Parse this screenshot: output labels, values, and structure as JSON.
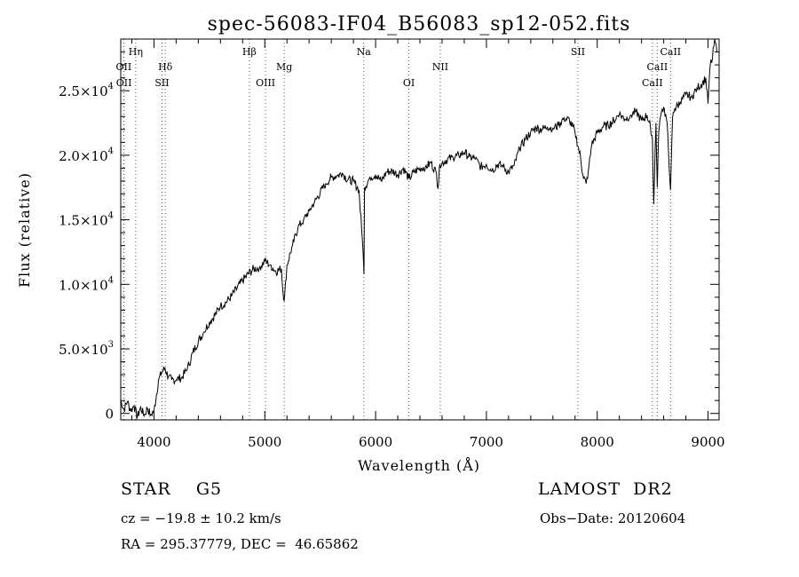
{
  "title": "spec-56083-IF04_B56083_sp12-052.fits",
  "footer": {
    "object_class": "STAR",
    "subclass": "G5",
    "survey": "LAMOST  DR2",
    "cz": "cz = −19.8 ± 10.2 km/s",
    "obs_date": "Obs−Date: 20120604",
    "radec": "RA = 295.37779, DEC =  46.65862"
  },
  "chart_data": {
    "type": "line",
    "title": "spec-56083-IF04_B56083_sp12-052.fits",
    "xlabel": "Wavelength (Å)",
    "ylabel": "Flux (relative)",
    "xlim": [
      3700,
      9100
    ],
    "ylim": [
      -500,
      29000
    ],
    "x_ticks": [
      4000,
      5000,
      6000,
      7000,
      8000,
      9000
    ],
    "y_ticks": [
      {
        "value": 0,
        "mantissa": "0",
        "exp": ""
      },
      {
        "value": 5000,
        "mantissa": "5.0×10",
        "exp": "3"
      },
      {
        "value": 10000,
        "mantissa": "1.0×10",
        "exp": "4"
      },
      {
        "value": 15000,
        "mantissa": "1.5×10",
        "exp": "4"
      },
      {
        "value": 20000,
        "mantissa": "2.0×10",
        "exp": "4"
      },
      {
        "value": 25000,
        "mantissa": "2.5×10",
        "exp": "4"
      }
    ],
    "grid": false,
    "series": [
      {
        "x": [
          3700,
          3730,
          3760,
          3790,
          3820,
          3850,
          3880,
          3910,
          3940,
          3970,
          4000,
          4040,
          4070,
          4100,
          4130,
          4160,
          4200,
          4250,
          4300,
          4350,
          4400,
          4450,
          4500,
          4550,
          4600,
          4650,
          4700,
          4750,
          4800,
          4850,
          4900,
          4950,
          5000,
          5050,
          5100,
          5150,
          5170,
          5180,
          5200,
          5250,
          5300,
          5350,
          5400,
          5450,
          5500,
          5550,
          5600,
          5650,
          5700,
          5750,
          5800,
          5850,
          5880,
          5890,
          5895,
          5900,
          5950,
          6000,
          6050,
          6100,
          6150,
          6200,
          6250,
          6300,
          6350,
          6400,
          6450,
          6500,
          6550,
          6563,
          6580,
          6600,
          6650,
          6700,
          6750,
          6800,
          6850,
          6900,
          6950,
          7000,
          7050,
          7100,
          7150,
          7200,
          7250,
          7300,
          7350,
          7400,
          7450,
          7500,
          7550,
          7600,
          7650,
          7700,
          7750,
          7800,
          7850,
          7870,
          7900,
          7920,
          7950,
          8000,
          8050,
          8100,
          8150,
          8200,
          8250,
          8300,
          8350,
          8400,
          8450,
          8480,
          8498,
          8510,
          8530,
          8542,
          8555,
          8580,
          8600,
          8630,
          8662,
          8680,
          8700,
          8750,
          8800,
          8850,
          8900,
          8950,
          8980,
          9000,
          9020,
          9040,
          9060,
          9080
        ],
        "y": [
          1000,
          300,
          900,
          200,
          600,
          -300,
          500,
          -200,
          400,
          -100,
          200,
          2500,
          3200,
          3500,
          2800,
          2600,
          2600,
          2800,
          3400,
          4700,
          5600,
          6300,
          7100,
          7600,
          8300,
          8600,
          9100,
          9700,
          10300,
          10800,
          11200,
          11300,
          11800,
          11500,
          11000,
          11200,
          8800,
          9200,
          11500,
          13000,
          14400,
          15000,
          15700,
          16400,
          17100,
          17800,
          18300,
          18400,
          18600,
          18100,
          18000,
          17300,
          13500,
          12000,
          10800,
          17500,
          18300,
          18500,
          18000,
          18700,
          18800,
          18500,
          19000,
          18200,
          18700,
          19000,
          19100,
          19400,
          18600,
          17400,
          19300,
          19400,
          19700,
          19800,
          20000,
          20200,
          19900,
          19700,
          19100,
          19300,
          18800,
          19300,
          19100,
          18700,
          19200,
          20500,
          21200,
          21800,
          22100,
          22000,
          22200,
          22100,
          22300,
          22900,
          22700,
          21800,
          19800,
          18500,
          17800,
          18800,
          20800,
          21700,
          22200,
          22300,
          22700,
          23200,
          22800,
          23100,
          23400,
          22700,
          23100,
          22200,
          21300,
          16200,
          22500,
          17500,
          21800,
          23400,
          23700,
          22600,
          17300,
          22900,
          23600,
          24100,
          24700,
          24500,
          25200,
          25600,
          26000,
          24000,
          27000,
          27500,
          29000,
          28000
        ],
        "style": "black thin line"
      }
    ],
    "line_markers": [
      {
        "label": "Hη",
        "x": 3835,
        "row": 1
      },
      {
        "label": "OII",
        "x": 3727,
        "row": 2
      },
      {
        "label": "OII",
        "x": 3729,
        "row": 3
      },
      {
        "label": "Hδ",
        "x": 4102,
        "row": 2
      },
      {
        "label": "SII",
        "x": 4072,
        "row": 3
      },
      {
        "label": "Hβ",
        "x": 4861,
        "row": 1
      },
      {
        "label": "Mg",
        "x": 5175,
        "row": 2
      },
      {
        "label": "OIII",
        "x": 5007,
        "row": 3
      },
      {
        "label": "Na",
        "x": 5893,
        "row": 1
      },
      {
        "label": "NII",
        "x": 6584,
        "row": 2
      },
      {
        "label": "OI",
        "x": 6300,
        "row": 3
      },
      {
        "label": "SII",
        "x": 7826,
        "row": 1
      },
      {
        "label": "CaII",
        "x": 8662,
        "row": 1
      },
      {
        "label": "CaII",
        "x": 8542,
        "row": 2
      },
      {
        "label": "CaII",
        "x": 8498,
        "row": 3
      }
    ]
  }
}
